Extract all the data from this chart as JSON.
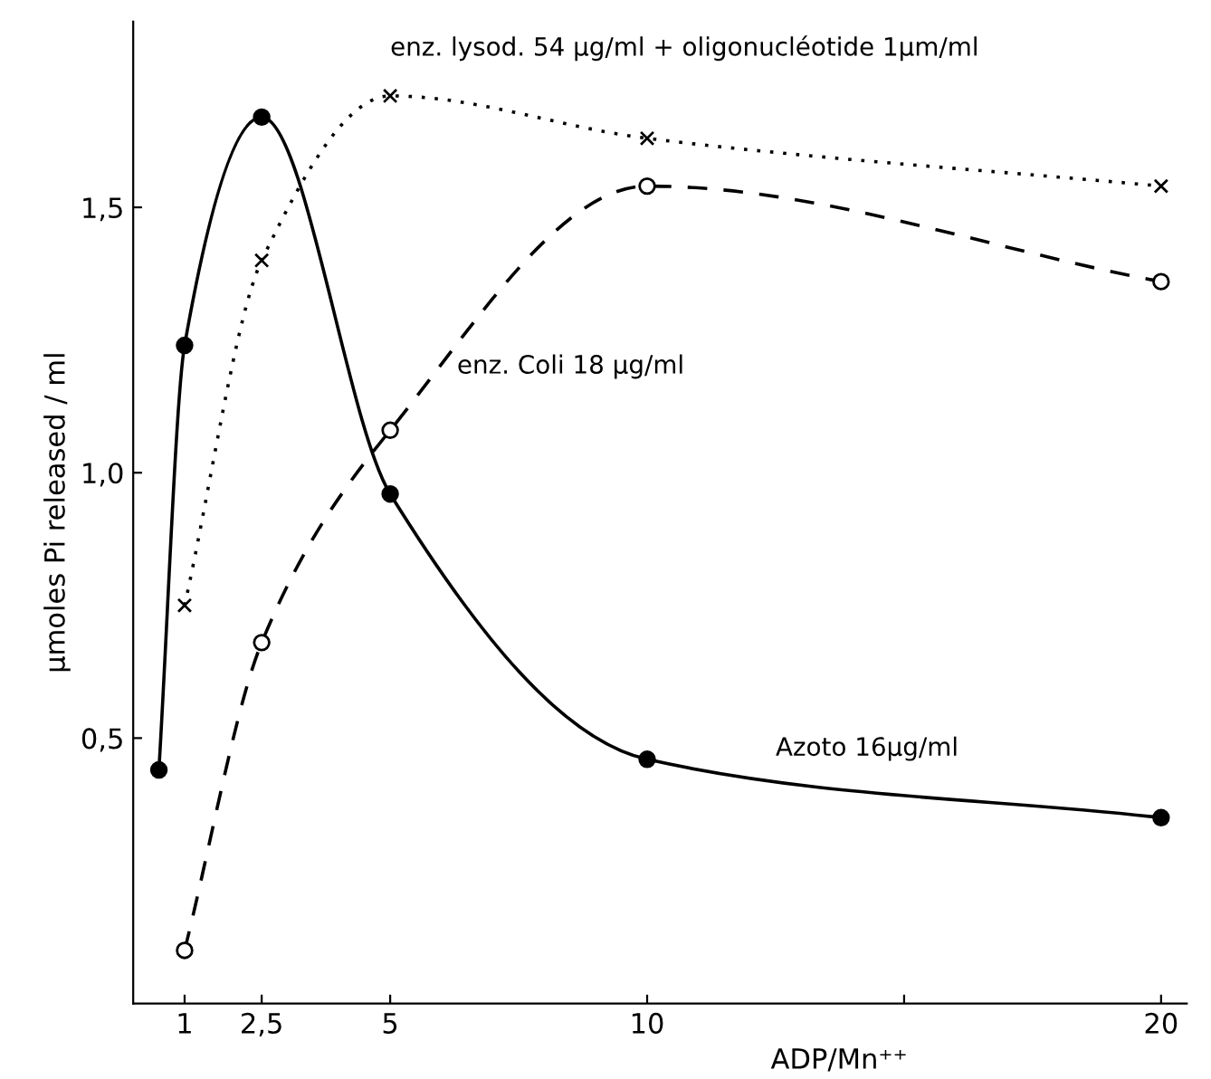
{
  "chart_data": {
    "type": "line",
    "xlabel": "ADP/Mn⁺⁺",
    "ylabel": "µmoles Pi released / ml",
    "xlim": [
      0,
      20.5
    ],
    "ylim": [
      0,
      1.85
    ],
    "xticks": [
      1,
      {
        "value": 2.5,
        "label": "2,5"
      },
      5,
      10,
      {
        "value": 15,
        "label": null
      },
      20
    ],
    "yticks": [
      {
        "value": 0.5,
        "label": "0,5"
      },
      {
        "value": 1.0,
        "label": "1,0"
      },
      {
        "value": 1.5,
        "label": "1,5"
      }
    ],
    "grid": false,
    "legend": false,
    "series": [
      {
        "name": "Azoto 16µg/ml",
        "color": "#000000",
        "marker": "circle",
        "line_style": "solid",
        "x": [
          0.5,
          1,
          2.5,
          5,
          10,
          20
        ],
        "values": [
          0.44,
          1.24,
          1.67,
          0.96,
          0.46,
          0.35
        ]
      },
      {
        "name": "enz. lysod. 54 µg/ml + oligonucléotide 1µm/ml",
        "color": "#000000",
        "marker": "cross",
        "line_style": "dotted",
        "x": [
          1,
          2.5,
          5,
          10,
          20
        ],
        "values": [
          0.75,
          1.4,
          1.71,
          1.63,
          1.54
        ]
      },
      {
        "name": "enz. Coli 18 µg/ml",
        "color": "#000000",
        "marker": "circle",
        "line_style": "dashed",
        "x": [
          1,
          2.5,
          5,
          10,
          20
        ],
        "values": [
          0.1,
          0.68,
          1.08,
          1.54,
          1.36
        ]
      }
    ]
  }
}
